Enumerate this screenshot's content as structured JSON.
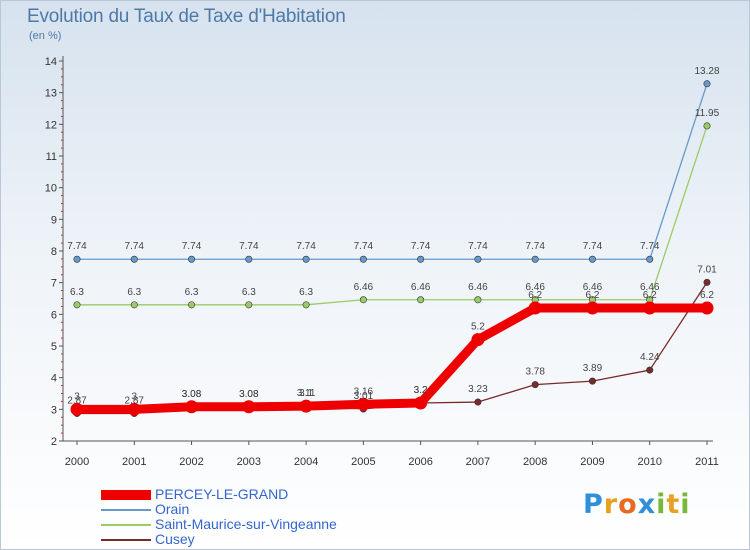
{
  "chart_data": {
    "type": "line",
    "title": "Evolution du Taux de Taxe d'Habitation",
    "subtitle": "(en %)",
    "x": [
      "2000",
      "2001",
      "2002",
      "2003",
      "2004",
      "2005",
      "2006",
      "2007",
      "2008",
      "2009",
      "2010",
      "2011"
    ],
    "ylim": [
      2,
      14
    ],
    "yticks": [
      2,
      3,
      4,
      5,
      6,
      7,
      8,
      9,
      10,
      11,
      12,
      13,
      14
    ],
    "grid": false,
    "legend_position": "bottom-left",
    "series": [
      {
        "name": "PERCEY-LE-GRAND",
        "color": "#ee0000",
        "values": [
          3,
          3,
          3.08,
          3.08,
          3.1,
          3.16,
          3.2,
          5.2,
          6.2,
          6.2,
          6.2,
          6.2
        ],
        "labels": [
          "3",
          "3",
          "3.08",
          "3.08",
          "3.1",
          "3.16",
          "3.2",
          "5.2",
          "6.2",
          "6.2",
          "6.2",
          "6.2"
        ]
      },
      {
        "name": "Orain",
        "color": "#6699cc",
        "values": [
          7.74,
          7.74,
          7.74,
          7.74,
          7.74,
          7.74,
          7.74,
          7.74,
          7.74,
          7.74,
          7.74,
          13.28
        ],
        "labels": [
          "7.74",
          "7.74",
          "7.74",
          "7.74",
          "7.74",
          "7.74",
          "7.74",
          "7.74",
          "7.74",
          "7.74",
          "7.74",
          "13.28"
        ]
      },
      {
        "name": "Saint-Maurice-sur-Vingeanne",
        "color": "#99cc66",
        "values": [
          6.3,
          6.3,
          6.3,
          6.3,
          6.3,
          6.46,
          6.46,
          6.46,
          6.46,
          6.46,
          6.46,
          11.95
        ],
        "labels": [
          "6.3",
          "6.3",
          "6.3",
          "6.3",
          "6.3",
          "6.46",
          "6.46",
          "6.46",
          "6.46",
          "6.46",
          "6.46",
          "11.95"
        ]
      },
      {
        "name": "Cusey",
        "color": "#7a2a2a",
        "values": [
          2.87,
          2.87,
          3.08,
          3.08,
          3.11,
          3.01,
          3.2,
          3.23,
          3.78,
          3.89,
          4.24,
          7.01
        ],
        "labels": [
          "2.87",
          "2.87",
          "3.08",
          "3.08",
          "3.11",
          "3.01",
          "3.2",
          "3.23",
          "3.78",
          "3.89",
          "4.24",
          "7.01"
        ]
      }
    ]
  },
  "brand": {
    "letters": [
      "P",
      "r",
      "o",
      "x",
      "i",
      "t",
      "i"
    ],
    "colors": [
      "#2f8fd8",
      "#e8a020",
      "#e86a20",
      "#2f8fd8",
      "#7ab83a",
      "#e8a020",
      "#7ab83a"
    ]
  }
}
